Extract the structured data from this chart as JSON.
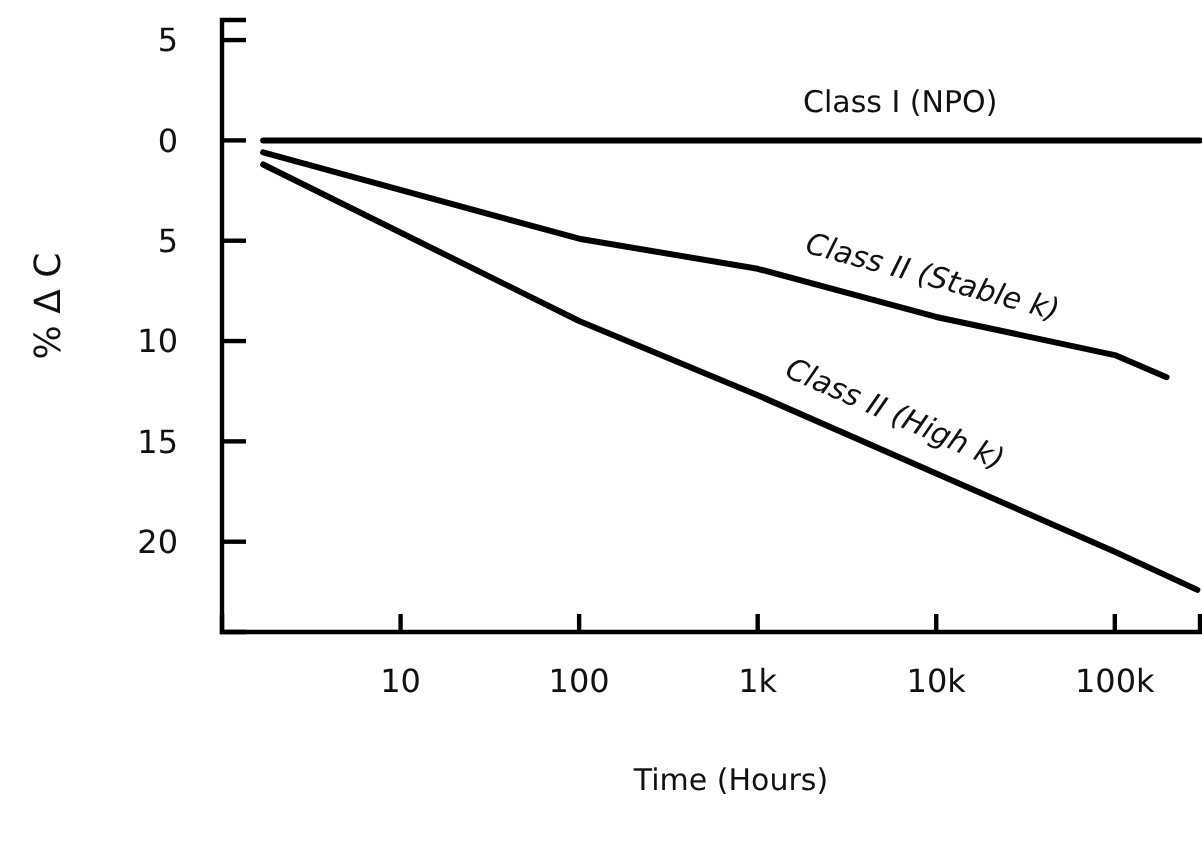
{
  "chart_data": {
    "type": "line",
    "xlabel": "Time (Hours)",
    "ylabel": "% Δ C",
    "log": "x",
    "xlim": [
      1,
      300000
    ],
    "ylim": [
      -24.5,
      6
    ],
    "xticks": [
      10,
      100,
      {
        "value": 1000,
        "label": "1k"
      },
      {
        "value": 10000,
        "label": "10k"
      },
      {
        "value": 100000,
        "label": "100k"
      }
    ],
    "yticks": [
      5,
      0,
      {
        "value": -5,
        "label": "5"
      },
      {
        "value": -10,
        "label": "10"
      },
      {
        "value": -15,
        "label": "15"
      },
      {
        "value": -20,
        "label": "20"
      }
    ],
    "grid": false,
    "marker": "none",
    "line_style": "solid",
    "series": [
      {
        "name": "Class I (NPO)",
        "color": "#000000",
        "x": [
          1.7,
          300000
        ],
        "values": [
          0,
          0
        ]
      },
      {
        "name": "Class II (Stable k)",
        "color": "#000000",
        "x": [
          1.7,
          100,
          1000,
          10000,
          100000,
          195000
        ],
        "values": [
          -0.6,
          -4.9,
          -6.4,
          -8.8,
          -10.7,
          -11.8
        ]
      },
      {
        "name": "Class II (High k)",
        "color": "#000000",
        "x": [
          1.7,
          100,
          1000,
          10000,
          100000,
          290000
        ],
        "values": [
          -1.2,
          -9.0,
          -12.7,
          -16.6,
          -20.5,
          -22.4
        ]
      }
    ]
  }
}
